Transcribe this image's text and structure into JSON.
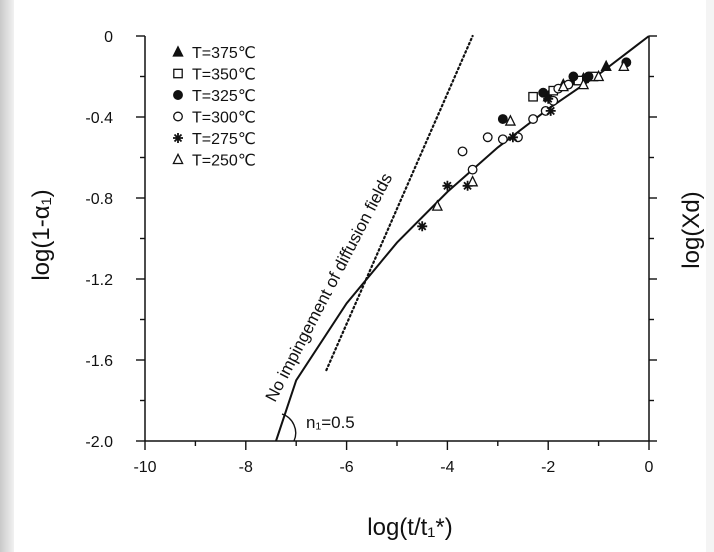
{
  "chart_data": {
    "type": "scatter",
    "title": "",
    "xlabel": "log(t/t₁*)",
    "ylabel": "log(1-α₁)",
    "ylabel_right": "log(Xd)",
    "xlim": [
      -10,
      0
    ],
    "ylim": [
      -2.0,
      0
    ],
    "x_ticks": [
      -10,
      -8,
      -6,
      -4,
      -2,
      0
    ],
    "x_tick_labels": [
      "-10",
      "-8",
      "-6",
      "-4",
      "-2",
      "0"
    ],
    "y_ticks": [
      0,
      -0.4,
      -0.8,
      -1.2,
      -1.6,
      -2.0
    ],
    "y_tick_labels": [
      "0",
      "-0.4",
      "-0.8",
      "-1.2",
      "-1.6",
      "-2.0"
    ],
    "grid": false,
    "legend_position": "top-left",
    "series": [
      {
        "name": "T=375℃",
        "marker": "triangle-filled",
        "points": [
          [
            -2.0,
            -0.3
          ],
          [
            -1.7,
            -0.24
          ],
          [
            -1.5,
            -0.22
          ],
          [
            -1.3,
            -0.21
          ],
          [
            -0.85,
            -0.15
          ]
        ]
      },
      {
        "name": "T=350℃",
        "marker": "square-open",
        "points": [
          [
            -2.3,
            -0.3
          ],
          [
            -1.9,
            -0.27
          ],
          [
            -1.4,
            -0.22
          ],
          [
            -1.1,
            -0.2
          ]
        ]
      },
      {
        "name": "T=325℃",
        "marker": "circle-filled",
        "points": [
          [
            -2.9,
            -0.41
          ],
          [
            -2.1,
            -0.28
          ],
          [
            -1.5,
            -0.2
          ],
          [
            -1.2,
            -0.2
          ],
          [
            -0.45,
            -0.13
          ]
        ]
      },
      {
        "name": "T=300℃",
        "marker": "circle-open",
        "points": [
          [
            -3.7,
            -0.57
          ],
          [
            -3.5,
            -0.66
          ],
          [
            -3.2,
            -0.5
          ],
          [
            -2.9,
            -0.51
          ],
          [
            -2.6,
            -0.5
          ],
          [
            -2.3,
            -0.41
          ],
          [
            -2.05,
            -0.37
          ],
          [
            -1.9,
            -0.32
          ],
          [
            -1.8,
            -0.26
          ],
          [
            -1.6,
            -0.24
          ]
        ]
      },
      {
        "name": "T=275℃",
        "marker": "asterisk",
        "points": [
          [
            -4.5,
            -0.94
          ],
          [
            -4.0,
            -0.74
          ],
          [
            -3.6,
            -0.74
          ],
          [
            -2.7,
            -0.5
          ],
          [
            -2.0,
            -0.31
          ],
          [
            -1.95,
            -0.37
          ]
        ]
      },
      {
        "name": "T=250℃",
        "marker": "triangle-open",
        "points": [
          [
            -4.2,
            -0.84
          ],
          [
            -3.5,
            -0.72
          ],
          [
            -2.75,
            -0.42
          ],
          [
            -1.7,
            -0.25
          ],
          [
            -1.3,
            -0.24
          ],
          [
            -1.0,
            -0.2
          ],
          [
            -0.5,
            -0.15
          ]
        ]
      }
    ],
    "lines": [
      {
        "name": "fit-curve",
        "style": "solid",
        "points": [
          [
            -7.4,
            -2.0
          ],
          [
            -7.0,
            -1.7
          ],
          [
            -6.0,
            -1.32
          ],
          [
            -5.0,
            -1.02
          ],
          [
            -4.0,
            -0.77
          ],
          [
            -3.0,
            -0.55
          ],
          [
            -2.0,
            -0.36
          ],
          [
            -1.0,
            -0.19
          ],
          [
            0.0,
            0.0
          ]
        ]
      },
      {
        "name": "no-impingement-line",
        "style": "dotted",
        "points": [
          [
            -6.4,
            -1.65
          ],
          [
            -3.5,
            0.0
          ]
        ]
      }
    ],
    "annotations": {
      "dotted_label": "No impingement of diffusion fields",
      "slope_label": "n₁=0.5"
    }
  }
}
